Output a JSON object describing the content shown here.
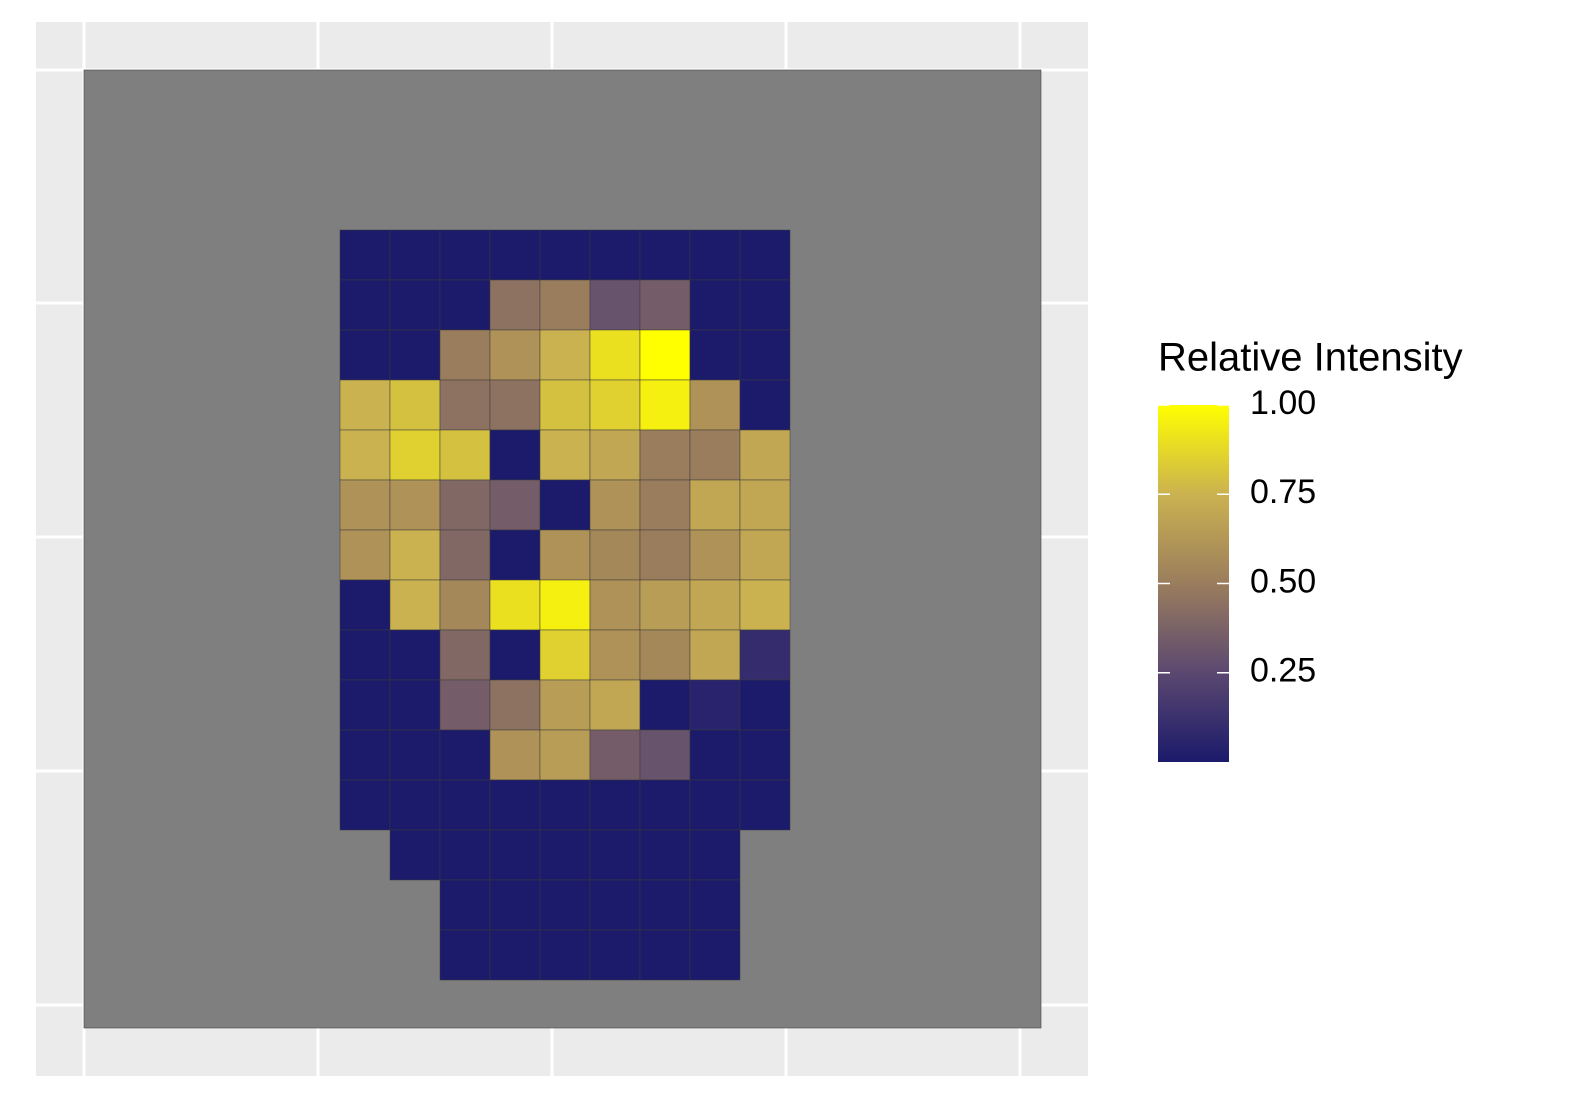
{
  "chart_data": {
    "type": "spatial-heatmap",
    "legend_title": "Relative Intensity",
    "colorscale": [
      "#1b1a6b",
      "#5b4870",
      "#9a7d5d",
      "#cbb250",
      "#ffff00"
    ],
    "na_color": "#7f7f7f",
    "clim": [
      0,
      1
    ],
    "cticks": [
      {
        "value": 0.25,
        "label": "0.25"
      },
      {
        "value": 0.5,
        "label": "0.50"
      },
      {
        "value": 0.75,
        "label": "0.75"
      },
      {
        "value": 1,
        "label": "1.00"
      }
    ],
    "values": [
      [
        0,
        0,
        0,
        0,
        0,
        0,
        0,
        0,
        0
      ],
      [
        0,
        0,
        0,
        0.45,
        0.5,
        0.3,
        0.35,
        0,
        0
      ],
      [
        0,
        0,
        0.5,
        0.6,
        0.75,
        0.9,
        1,
        0,
        0
      ],
      [
        0.75,
        0.8,
        0.45,
        0.45,
        0.8,
        0.85,
        0.95,
        0.6,
        0
      ],
      [
        0.75,
        0.85,
        0.8,
        0,
        0.75,
        0.7,
        0.5,
        0.5,
        0.7
      ],
      [
        0.6,
        0.6,
        0.4,
        0.35,
        0,
        0.6,
        0.5,
        0.7,
        0.7
      ],
      [
        0.6,
        0.75,
        0.4,
        0,
        0.6,
        0.55,
        0.5,
        0.6,
        0.7
      ],
      [
        0,
        0.75,
        0.55,
        0.9,
        0.95,
        0.6,
        0.65,
        0.7,
        0.75
      ],
      [
        0,
        0,
        0.4,
        0,
        0.85,
        0.6,
        0.55,
        0.7,
        0.1
      ],
      [
        0,
        0,
        0.35,
        0.45,
        0.65,
        0.7,
        0,
        0.05,
        0
      ],
      [
        0,
        0,
        0,
        0.6,
        0.65,
        0.35,
        0.3,
        0,
        0
      ],
      [
        0,
        0,
        0,
        0,
        0,
        0,
        0,
        0,
        0
      ],
      [
        null,
        0,
        0,
        0,
        0,
        0,
        0,
        0,
        null
      ],
      [
        null,
        null,
        0,
        0,
        0,
        0,
        0,
        0,
        null
      ],
      [
        null,
        null,
        0,
        0,
        0,
        0,
        0,
        0,
        null
      ]
    ]
  }
}
